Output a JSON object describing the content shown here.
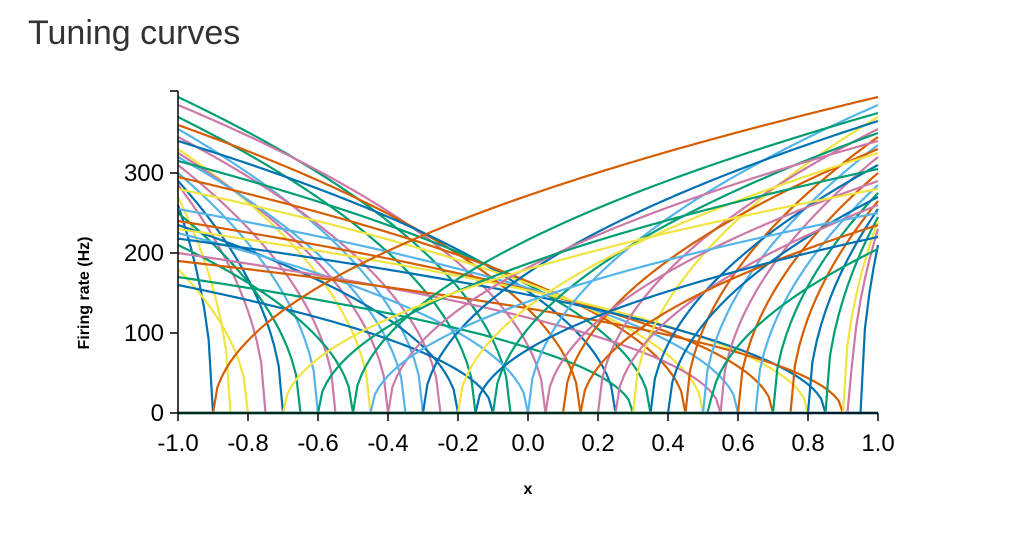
{
  "title": "Tuning curves",
  "chart_data": {
    "type": "line",
    "title": "Tuning curves",
    "xlabel": "x",
    "ylabel": "Firing rate (Hz)",
    "xlim": [
      -1.0,
      1.0
    ],
    "ylim": [
      0,
      400
    ],
    "x_ticks": [
      -1.0,
      -0.8,
      -0.6,
      -0.4,
      -0.2,
      0.0,
      0.2,
      0.4,
      0.6,
      0.8,
      1.0
    ],
    "x_tick_labels": [
      "-1.0",
      "-0.8",
      "-0.6",
      "-0.4",
      "-0.2",
      "0.0",
      "0.2",
      "0.4",
      "0.6",
      "0.8",
      "1.0"
    ],
    "y_ticks": [
      0,
      100,
      200,
      300
    ],
    "y_tick_labels": [
      "0",
      "100",
      "200",
      "300"
    ],
    "grid": false,
    "legend": "none",
    "palette": [
      "#0072B2",
      "#D55E00",
      "#009E73",
      "#56B4E9",
      "#CC79A7",
      "#F0E442"
    ],
    "neuron_model": "rectified-linear in sqrt-scaled input; each curve given by encoder direction, x-intercept and rate at x = encoder",
    "series": [
      {
        "encoder": -1,
        "intercept": 0.05,
        "max_rate": 395,
        "color": "#009E73"
      },
      {
        "encoder": -1,
        "intercept": -0.05,
        "max_rate": 385,
        "color": "#CC79A7"
      },
      {
        "encoder": -1,
        "intercept": 0.15,
        "max_rate": 370,
        "color": "#009E73"
      },
      {
        "encoder": -1,
        "intercept": -0.15,
        "max_rate": 360,
        "color": "#D55E00"
      },
      {
        "encoder": -1,
        "intercept": 0.3,
        "max_rate": 355,
        "color": "#56B4E9"
      },
      {
        "encoder": -1,
        "intercept": 0.25,
        "max_rate": 345,
        "color": "#CC79A7"
      },
      {
        "encoder": -1,
        "intercept": -0.25,
        "max_rate": 340,
        "color": "#0072B2"
      },
      {
        "encoder": -1,
        "intercept": 0.45,
        "max_rate": 330,
        "color": "#F0E442"
      },
      {
        "encoder": -1,
        "intercept": 0.4,
        "max_rate": 325,
        "color": "#CC79A7"
      },
      {
        "encoder": -1,
        "intercept": 0.35,
        "max_rate": 320,
        "color": "#56B4E9"
      },
      {
        "encoder": -1,
        "intercept": -0.35,
        "max_rate": 315,
        "color": "#009E73"
      },
      {
        "encoder": -1,
        "intercept": 0.55,
        "max_rate": 310,
        "color": "#CC79A7"
      },
      {
        "encoder": -1,
        "intercept": 0.6,
        "max_rate": 300,
        "color": "#56B4E9"
      },
      {
        "encoder": -1,
        "intercept": -0.45,
        "max_rate": 295,
        "color": "#D55E00"
      },
      {
        "encoder": -1,
        "intercept": 0.7,
        "max_rate": 290,
        "color": "#0072B2"
      },
      {
        "encoder": -1,
        "intercept": 0.75,
        "max_rate": 285,
        "color": "#CC79A7"
      },
      {
        "encoder": -1,
        "intercept": -0.5,
        "max_rate": 280,
        "color": "#F0E442"
      },
      {
        "encoder": -1,
        "intercept": 0.85,
        "max_rate": 270,
        "color": "#F0E442"
      },
      {
        "encoder": -1,
        "intercept": 0.9,
        "max_rate": 260,
        "color": "#0072B2"
      },
      {
        "encoder": -1,
        "intercept": -0.6,
        "max_rate": 255,
        "color": "#56B4E9"
      },
      {
        "encoder": -1,
        "intercept": 0.65,
        "max_rate": 250,
        "color": "#009E73"
      },
      {
        "encoder": -1,
        "intercept": -0.7,
        "max_rate": 240,
        "color": "#D55E00"
      },
      {
        "encoder": -1,
        "intercept": 0.2,
        "max_rate": 235,
        "color": "#0072B2"
      },
      {
        "encoder": -1,
        "intercept": -0.8,
        "max_rate": 230,
        "color": "#F0E442"
      },
      {
        "encoder": -1,
        "intercept": 0.0,
        "max_rate": 225,
        "color": "#56B4E9"
      },
      {
        "encoder": -1,
        "intercept": -0.85,
        "max_rate": 218,
        "color": "#0072B2"
      },
      {
        "encoder": -1,
        "intercept": 0.5,
        "max_rate": 210,
        "color": "#009E73"
      },
      {
        "encoder": -1,
        "intercept": -0.55,
        "max_rate": 200,
        "color": "#CC79A7"
      },
      {
        "encoder": -1,
        "intercept": -0.9,
        "max_rate": 190,
        "color": "#D55E00"
      },
      {
        "encoder": -1,
        "intercept": 0.8,
        "max_rate": 180,
        "color": "#F0E442"
      },
      {
        "encoder": -1,
        "intercept": -0.3,
        "max_rate": 170,
        "color": "#009E73"
      },
      {
        "encoder": -1,
        "intercept": 0.1,
        "max_rate": 160,
        "color": "#0072B2"
      },
      {
        "encoder": 1,
        "intercept": -0.9,
        "max_rate": 395,
        "color": "#D55E00"
      },
      {
        "encoder": 1,
        "intercept": 0.0,
        "max_rate": 385,
        "color": "#56B4E9"
      },
      {
        "encoder": 1,
        "intercept": -0.5,
        "max_rate": 375,
        "color": "#009E73"
      },
      {
        "encoder": 1,
        "intercept": 0.3,
        "max_rate": 370,
        "color": "#F0E442"
      },
      {
        "encoder": 1,
        "intercept": -0.3,
        "max_rate": 365,
        "color": "#0072B2"
      },
      {
        "encoder": 1,
        "intercept": 0.2,
        "max_rate": 355,
        "color": "#CC79A7"
      },
      {
        "encoder": 1,
        "intercept": -0.1,
        "max_rate": 350,
        "color": "#009E73"
      },
      {
        "encoder": 1,
        "intercept": 0.45,
        "max_rate": 345,
        "color": "#D55E00"
      },
      {
        "encoder": 1,
        "intercept": -0.4,
        "max_rate": 340,
        "color": "#CC79A7"
      },
      {
        "encoder": 1,
        "intercept": 0.5,
        "max_rate": 335,
        "color": "#56B4E9"
      },
      {
        "encoder": 1,
        "intercept": 0.1,
        "max_rate": 330,
        "color": "#D55E00"
      },
      {
        "encoder": 1,
        "intercept": -0.2,
        "max_rate": 325,
        "color": "#F0E442"
      },
      {
        "encoder": 1,
        "intercept": 0.55,
        "max_rate": 320,
        "color": "#CC79A7"
      },
      {
        "encoder": 1,
        "intercept": 0.35,
        "max_rate": 310,
        "color": "#0072B2"
      },
      {
        "encoder": 1,
        "intercept": -0.6,
        "max_rate": 305,
        "color": "#009E73"
      },
      {
        "encoder": 1,
        "intercept": 0.6,
        "max_rate": 300,
        "color": "#D55E00"
      },
      {
        "encoder": 1,
        "intercept": 0.05,
        "max_rate": 290,
        "color": "#CC79A7"
      },
      {
        "encoder": 1,
        "intercept": 0.65,
        "max_rate": 285,
        "color": "#56B4E9"
      },
      {
        "encoder": 1,
        "intercept": -0.7,
        "max_rate": 280,
        "color": "#F0E442"
      },
      {
        "encoder": 1,
        "intercept": 0.7,
        "max_rate": 275,
        "color": "#009E73"
      },
      {
        "encoder": 1,
        "intercept": 0.4,
        "max_rate": 270,
        "color": "#0072B2"
      },
      {
        "encoder": 1,
        "intercept": 0.75,
        "max_rate": 265,
        "color": "#D55E00"
      },
      {
        "encoder": 1,
        "intercept": 0.25,
        "max_rate": 260,
        "color": "#CC79A7"
      },
      {
        "encoder": 1,
        "intercept": 0.8,
        "max_rate": 255,
        "color": "#0072B2"
      },
      {
        "encoder": 1,
        "intercept": -0.45,
        "max_rate": 250,
        "color": "#56B4E9"
      },
      {
        "encoder": 1,
        "intercept": 0.85,
        "max_rate": 245,
        "color": "#009E73"
      },
      {
        "encoder": 1,
        "intercept": 0.9,
        "max_rate": 240,
        "color": "#F0E442"
      },
      {
        "encoder": 1,
        "intercept": 0.15,
        "max_rate": 235,
        "color": "#D55E00"
      },
      {
        "encoder": 1,
        "intercept": 0.92,
        "max_rate": 230,
        "color": "#CC79A7"
      },
      {
        "encoder": 1,
        "intercept": -0.15,
        "max_rate": 220,
        "color": "#0072B2"
      },
      {
        "encoder": 1,
        "intercept": 0.95,
        "max_rate": 210,
        "color": "#0072B2"
      },
      {
        "encoder": 1,
        "intercept": 0.52,
        "max_rate": 205,
        "color": "#009E73"
      }
    ]
  }
}
